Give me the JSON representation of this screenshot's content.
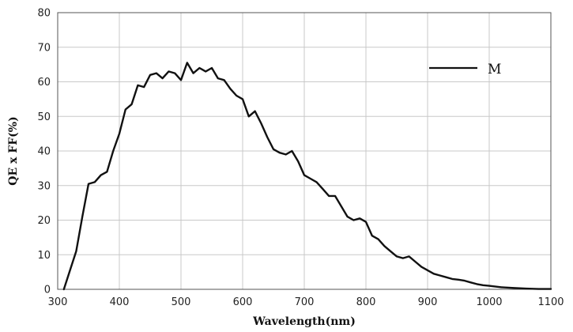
{
  "chart_data": {
    "type": "line",
    "title": "",
    "xlabel": "Wavelength(nm)",
    "ylabel": "QE x FF(%)",
    "xlim": [
      300,
      1100
    ],
    "ylim": [
      0,
      80
    ],
    "xticks": [
      300,
      400,
      500,
      600,
      700,
      800,
      900,
      1000,
      1100
    ],
    "yticks": [
      0,
      10,
      20,
      30,
      40,
      50,
      60,
      70,
      80
    ],
    "grid": true,
    "legend": "top-right",
    "series": [
      {
        "name": "M",
        "color": "#111111",
        "x": [
          310,
          320,
          330,
          340,
          350,
          360,
          370,
          380,
          390,
          400,
          410,
          420,
          430,
          440,
          450,
          460,
          470,
          480,
          490,
          500,
          510,
          520,
          530,
          540,
          550,
          560,
          570,
          580,
          590,
          600,
          610,
          620,
          630,
          640,
          650,
          660,
          670,
          680,
          690,
          700,
          710,
          720,
          730,
          740,
          750,
          760,
          770,
          780,
          790,
          800,
          810,
          820,
          830,
          840,
          850,
          860,
          870,
          880,
          890,
          900,
          910,
          920,
          930,
          940,
          950,
          960,
          970,
          980,
          990,
          1000,
          1020,
          1040,
          1060,
          1080,
          1100
        ],
        "y": [
          0,
          5.5,
          11,
          21,
          30.5,
          31,
          33,
          34,
          40,
          45,
          52,
          53.5,
          59,
          58.5,
          62,
          62.5,
          61,
          63,
          62.5,
          60.5,
          65.5,
          62.5,
          64,
          63,
          64,
          61,
          60.5,
          58,
          56,
          55,
          50,
          51.5,
          48,
          44,
          40.5,
          39.5,
          39,
          40,
          37,
          33,
          32,
          31,
          29,
          27,
          27,
          24,
          21,
          20,
          20.5,
          19.5,
          15.5,
          14.5,
          12.5,
          11,
          9.5,
          9,
          9.5,
          8,
          6.5,
          5.5,
          4.5,
          4,
          3.5,
          3,
          2.8,
          2.5,
          2,
          1.5,
          1.2,
          1.0,
          0.6,
          0.4,
          0.2,
          0.1,
          0.1
        ]
      }
    ]
  }
}
